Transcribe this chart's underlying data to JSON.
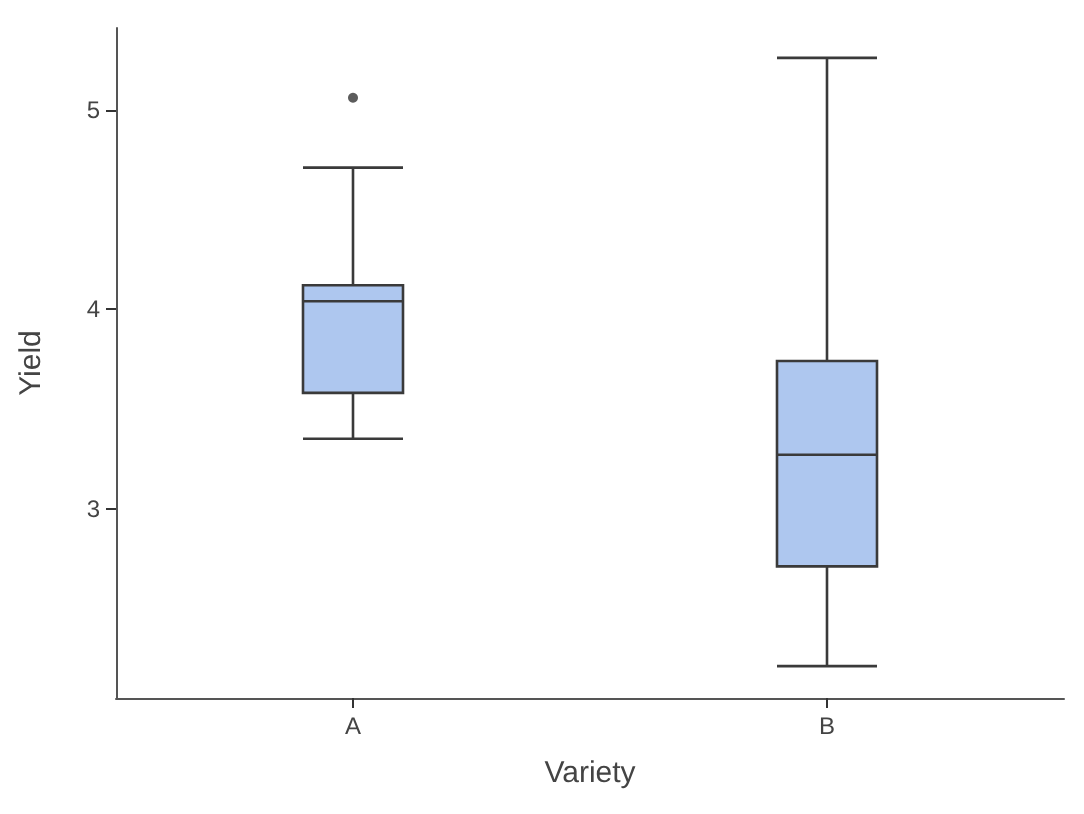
{
  "chart_data": {
    "type": "box",
    "xlabel": "Variety",
    "ylabel": "Yield",
    "categories": [
      "A",
      "B"
    ],
    "color": "#aec7ef",
    "boxes": [
      {
        "low": 3.35,
        "q1": 3.58,
        "median": 4.04,
        "q3": 4.12,
        "high": 4.71,
        "outliers": [
          5.06
        ]
      },
      {
        "low": 2.21,
        "q1": 2.71,
        "median": 3.27,
        "q3": 3.74,
        "high": 5.26
      }
    ],
    "ylim": [
      2.05,
      5.41
    ],
    "yticks": [
      3,
      4,
      5
    ],
    "grid": false,
    "legend": false
  }
}
